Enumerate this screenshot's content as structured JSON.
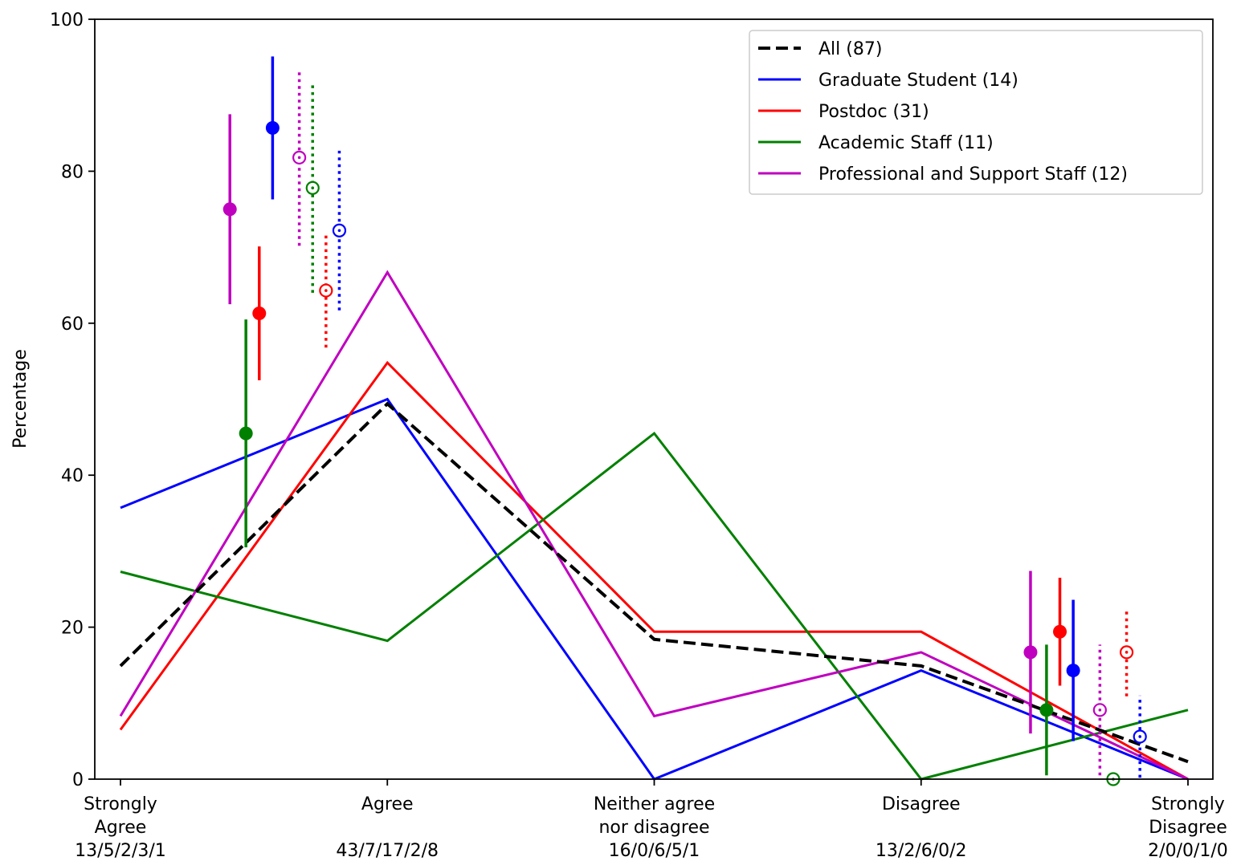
{
  "chart_data": {
    "type": "line",
    "ylabel": "Percentage",
    "ylim": [
      0,
      100
    ],
    "yticks": [
      "0",
      "20",
      "40",
      "60",
      "80",
      "100"
    ],
    "grid": false,
    "legend_position": "top-right",
    "categories": [
      {
        "lines": [
          "Strongly",
          "Agree",
          "13/5/2/3/1"
        ]
      },
      {
        "lines": [
          "Agree",
          "",
          "43/7/17/2/8"
        ]
      },
      {
        "lines": [
          "Neither agree",
          "nor disagree",
          "16/0/6/5/1"
        ]
      },
      {
        "lines": [
          "Disagree",
          "",
          "13/2/6/0/2"
        ]
      },
      {
        "lines": [
          "Strongly",
          "Disagree",
          "2/0/0/1/0"
        ]
      }
    ],
    "series": [
      {
        "name": "All (87)",
        "color": "#000000",
        "dashed": true,
        "values": [
          14.9,
          49.4,
          18.4,
          14.9,
          2.3
        ]
      },
      {
        "name": "Graduate Student (14)",
        "color": "#0000ff",
        "dashed": false,
        "values": [
          35.7,
          50.0,
          0.0,
          14.3,
          0.0
        ]
      },
      {
        "name": "Postdoc (31)",
        "color": "#ff0000",
        "dashed": false,
        "values": [
          6.5,
          54.8,
          19.4,
          19.4,
          0.0
        ]
      },
      {
        "name": "Academic Staff (11)",
        "color": "#008000",
        "dashed": false,
        "values": [
          27.3,
          18.2,
          45.5,
          0.0,
          9.1
        ]
      },
      {
        "name": "Professional and Support Staff (12)",
        "color": "#bf00bf",
        "dashed": false,
        "values": [
          8.3,
          66.7,
          8.3,
          16.7,
          0.0
        ]
      }
    ],
    "error_points": [
      {
        "group": "Professional and Support Staff",
        "color": "#bf00bf",
        "x": 0.41,
        "y": 75.0,
        "lo": 62.5,
        "hi": 87.5,
        "filled": true
      },
      {
        "group": "Academic Staff",
        "color": "#008000",
        "x": 0.47,
        "y": 45.5,
        "lo": 30.5,
        "hi": 60.5,
        "filled": true
      },
      {
        "group": "Postdoc",
        "color": "#ff0000",
        "x": 0.52,
        "y": 61.3,
        "lo": 52.5,
        "hi": 70.1,
        "filled": true
      },
      {
        "group": "Graduate Student",
        "color": "#0000ff",
        "x": 0.57,
        "y": 85.7,
        "lo": 76.3,
        "hi": 95.1,
        "filled": true
      },
      {
        "group": "Professional and Support Staff",
        "color": "#bf00bf",
        "x": 0.67,
        "y": 81.8,
        "lo": 70.2,
        "hi": 93.4,
        "filled": false
      },
      {
        "group": "Academic Staff",
        "color": "#008000",
        "x": 0.72,
        "y": 77.8,
        "lo": 64.0,
        "hi": 91.6,
        "filled": false
      },
      {
        "group": "Postdoc",
        "color": "#ff0000",
        "x": 0.77,
        "y": 64.3,
        "lo": 56.8,
        "hi": 71.8,
        "filled": false
      },
      {
        "group": "Graduate Student",
        "color": "#0000ff",
        "x": 0.82,
        "y": 72.2,
        "lo": 61.7,
        "hi": 82.7,
        "filled": false
      },
      {
        "group": "Professional and Support Staff",
        "color": "#bf00bf",
        "x": 3.41,
        "y": 16.7,
        "lo": 6.0,
        "hi": 27.4,
        "filled": true
      },
      {
        "group": "Academic Staff",
        "color": "#008000",
        "x": 3.47,
        "y": 9.1,
        "lo": 0.5,
        "hi": 17.7,
        "filled": true
      },
      {
        "group": "Postdoc",
        "color": "#ff0000",
        "x": 3.52,
        "y": 19.4,
        "lo": 12.3,
        "hi": 26.5,
        "filled": true
      },
      {
        "group": "Graduate Student",
        "color": "#0000ff",
        "x": 3.57,
        "y": 14.3,
        "lo": 5.0,
        "hi": 23.6,
        "filled": true
      },
      {
        "group": "Professional and Support Staff",
        "color": "#bf00bf",
        "x": 3.67,
        "y": 9.1,
        "lo": 0.5,
        "hi": 17.7,
        "filled": false
      },
      {
        "group": "Academic Staff",
        "color": "#008000",
        "x": 3.72,
        "y": 0.0,
        "lo": 0.0,
        "hi": 0.0,
        "filled": false
      },
      {
        "group": "Postdoc",
        "color": "#ff0000",
        "x": 3.77,
        "y": 16.7,
        "lo": 10.9,
        "hi": 22.5,
        "filled": false
      },
      {
        "group": "Graduate Student",
        "color": "#0000ff",
        "x": 3.82,
        "y": 5.6,
        "lo": 0.2,
        "hi": 11.0,
        "filled": false
      }
    ]
  }
}
